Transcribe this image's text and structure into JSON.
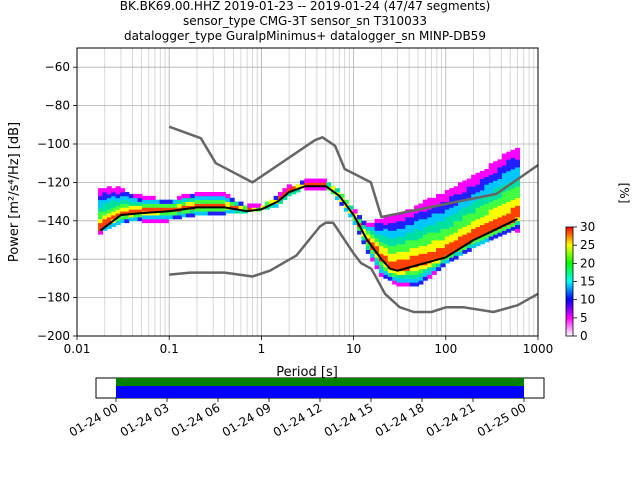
{
  "title": {
    "line1": "BK.BK69.00.HHZ   2019-01-23 -- 2019-01-24  (47/47 segments)",
    "line2": "sensor_type CMG-3T sensor_sn T310033",
    "line3": "datalogger_type GuralpMinimus+ datalogger_sn MINP-DB59"
  },
  "chart_data": [
    {
      "type": "heatmap",
      "title": "BK.BK69.00.HHZ   2019-01-23 -- 2019-01-24  (47/47 segments)",
      "xlabel": "Period [s]",
      "ylabel": "Power [m²/s⁴/Hz] [dB]",
      "xscale": "log",
      "xlim": [
        0.01,
        1000
      ],
      "ylim": [
        -200,
        -50
      ],
      "grid": true,
      "x_ticks": [
        {
          "value": 0.01,
          "label": "0.01"
        },
        {
          "value": 0.1,
          "label": "0.1"
        },
        {
          "value": 1,
          "label": "1"
        },
        {
          "value": 10,
          "label": "10"
        },
        {
          "value": 100,
          "label": "100"
        },
        {
          "value": 1000,
          "label": "1000"
        }
      ],
      "y_ticks": [
        -60,
        -80,
        -100,
        -120,
        -140,
        -160,
        -180,
        -200
      ],
      "colorbar": {
        "label": "[%]",
        "min": 0,
        "max": 30,
        "ticks": [
          0,
          5,
          10,
          15,
          20,
          25,
          30
        ],
        "colors": [
          "#ffffff",
          "#ff00ff",
          "#0000ff",
          "#00ffff",
          "#00ff00",
          "#ffff00",
          "#ff0000"
        ]
      },
      "series": [
        {
          "style": "new-high-noise-model",
          "color": "#666666",
          "points": [
            [
              0.1,
              -91
            ],
            [
              0.22,
              -97
            ],
            [
              0.32,
              -110
            ],
            [
              0.8,
              -120
            ],
            [
              3.8,
              -98
            ],
            [
              4.6,
              -96.5
            ],
            [
              6.3,
              -101
            ],
            [
              8,
              -113
            ],
            [
              15.4,
              -120
            ],
            [
              20,
              -138
            ],
            [
              354,
              -126
            ],
            [
              1000,
              -111
            ]
          ]
        },
        {
          "style": "new-low-noise-model",
          "color": "#666666",
          "points": [
            [
              0.1,
              -168
            ],
            [
              0.17,
              -167
            ],
            [
              0.4,
              -167
            ],
            [
              0.8,
              -169
            ],
            [
              1.24,
              -166
            ],
            [
              2.4,
              -158
            ],
            [
              4.3,
              -143
            ],
            [
              5.0,
              -141
            ],
            [
              6.0,
              -141
            ],
            [
              10,
              -157
            ],
            [
              12,
              -162
            ],
            [
              15.6,
              -165
            ],
            [
              21.9,
              -178
            ],
            [
              31.6,
              -185
            ],
            [
              45,
              -187.5
            ],
            [
              70,
              -187.5
            ],
            [
              101,
              -185
            ],
            [
              154,
              -185
            ],
            [
              328,
              -187.5
            ],
            [
              600,
              -184
            ],
            [
              1000,
              -178
            ]
          ]
        },
        {
          "style": "mode",
          "color": "#000000",
          "points": [
            [
              0.018,
              -145
            ],
            [
              0.03,
              -137
            ],
            [
              0.05,
              -136
            ],
            [
              0.1,
              -135
            ],
            [
              0.2,
              -133
            ],
            [
              0.4,
              -133
            ],
            [
              0.7,
              -135
            ],
            [
              1,
              -134
            ],
            [
              1.5,
              -130
            ],
            [
              2,
              -125
            ],
            [
              3,
              -122
            ],
            [
              5,
              -122
            ],
            [
              7,
              -127
            ],
            [
              10,
              -137
            ],
            [
              14,
              -150
            ],
            [
              20,
              -160
            ],
            [
              25,
              -165
            ],
            [
              30,
              -166
            ],
            [
              50,
              -163
            ],
            [
              100,
              -159
            ],
            [
              200,
              -150
            ],
            [
              300,
              -146
            ],
            [
              600,
              -139
            ]
          ]
        },
        {
          "style": "ppsd-upper",
          "color": "#ff00ff",
          "points": [
            [
              0.03,
              -124
            ],
            [
              0.05,
              -128
            ],
            [
              0.1,
              -130
            ],
            [
              0.2,
              -126
            ],
            [
              0.4,
              -127
            ],
            [
              0.7,
              -133
            ],
            [
              1,
              -133
            ],
            [
              1.5,
              -128
            ],
            [
              2,
              -123
            ],
            [
              3,
              -120
            ],
            [
              5,
              -120
            ],
            [
              7,
              -124
            ],
            [
              10,
              -135
            ],
            [
              14,
              -142
            ],
            [
              20,
              -140
            ],
            [
              35,
              -136
            ],
            [
              60,
              -131
            ],
            [
              100,
              -126
            ],
            [
              200,
              -118
            ],
            [
              350,
              -110
            ],
            [
              500,
              -104
            ],
            [
              700,
              -103
            ]
          ]
        },
        {
          "style": "ppsd-lower",
          "color": "#ff00ff",
          "points": [
            [
              0.018,
              -147
            ],
            [
              0.03,
              -143
            ],
            [
              0.05,
              -141
            ],
            [
              0.1,
              -141
            ],
            [
              0.2,
              -139
            ],
            [
              0.4,
              -138
            ],
            [
              0.7,
              -137
            ],
            [
              1,
              -136
            ],
            [
              1.5,
              -134
            ],
            [
              2,
              -129
            ],
            [
              3,
              -124
            ],
            [
              5,
              -124
            ],
            [
              7,
              -131
            ],
            [
              10,
              -142
            ],
            [
              14,
              -157
            ],
            [
              20,
              -170
            ],
            [
              30,
              -175
            ],
            [
              50,
              -176
            ],
            [
              80,
              -168
            ],
            [
              100,
              -164
            ],
            [
              200,
              -156
            ],
            [
              300,
              -152
            ],
            [
              600,
              -146
            ]
          ]
        }
      ]
    },
    {
      "type": "timeline",
      "x_ticks": [
        "01-24 00",
        "01-24 03",
        "01-24 06",
        "01-24 09",
        "01-24 12",
        "01-24 15",
        "01-24 18",
        "01-24 21",
        "01-25 00"
      ],
      "series": [
        {
          "style": "data-coverage",
          "color": "#0000ff",
          "start": "01-24 00",
          "end": "01-25 00"
        },
        {
          "style": "used-segments",
          "color": "#008000",
          "start": "01-24 00",
          "end": "01-25 00"
        }
      ]
    }
  ]
}
